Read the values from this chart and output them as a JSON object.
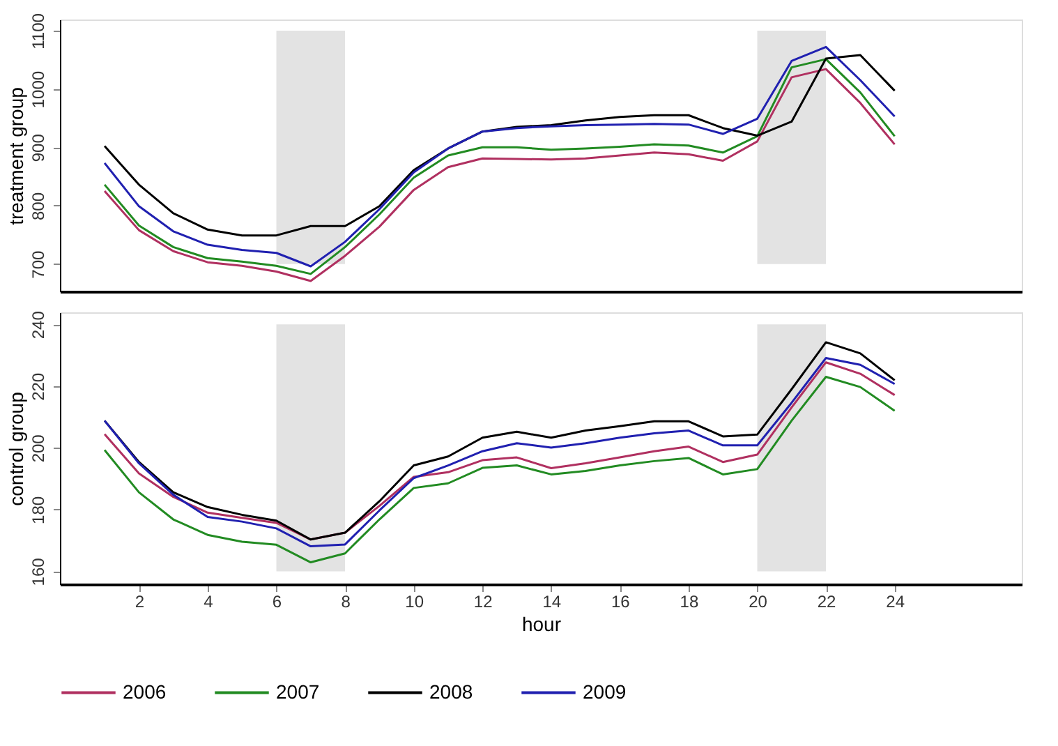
{
  "chart_data": [
    {
      "type": "line",
      "ylabel": "treatment group",
      "x": [
        1,
        2,
        3,
        4,
        5,
        6,
        7,
        8,
        9,
        10,
        11,
        12,
        13,
        14,
        15,
        16,
        17,
        18,
        19,
        20,
        21,
        22,
        23,
        24
      ],
      "xlim": [
        -0.3,
        27.7
      ],
      "ylim": [
        653,
        1119
      ],
      "yticks": [
        700,
        800,
        900,
        1000,
        1100
      ],
      "tick_labels": "y",
      "grid": false,
      "legend": "bottom",
      "bands": [
        {
          "axis": "x",
          "from": 6,
          "to": 8,
          "color": "#e3e3e3"
        },
        {
          "axis": "x",
          "from": 20,
          "to": 22,
          "color": "#e3e3e3"
        }
      ],
      "series": [
        {
          "name": "2006",
          "color": "#b03060",
          "values": [
            825,
            758,
            722,
            703,
            697,
            687,
            671,
            714,
            764,
            827,
            866,
            881,
            880,
            879,
            881,
            886,
            891,
            888,
            877,
            910,
            1020,
            1034,
            976,
            905
          ]
        },
        {
          "name": "2007",
          "color": "#228b22",
          "values": [
            836,
            766,
            729,
            710,
            704,
            697,
            683,
            729,
            785,
            848,
            886,
            900,
            900,
            896,
            898,
            901,
            905,
            903,
            891,
            919,
            1037,
            1051,
            994,
            919
          ]
        },
        {
          "name": "2008",
          "color": "#000000",
          "values": [
            902,
            836,
            787,
            759,
            749,
            749,
            765,
            765,
            799,
            861,
            898,
            927,
            935,
            938,
            946,
            952,
            955,
            955,
            933,
            920,
            944,
            1052,
            1058,
            997
          ]
        },
        {
          "name": "2009",
          "color": "#2020b0",
          "values": [
            873,
            799,
            756,
            733,
            724,
            719,
            696,
            738,
            794,
            857,
            898,
            927,
            933,
            936,
            938,
            939,
            940,
            939,
            923,
            949,
            1048,
            1072,
            1015,
            953
          ]
        }
      ]
    },
    {
      "type": "line",
      "ylabel": "control group",
      "xlabel": "hour",
      "x": [
        1,
        2,
        3,
        4,
        5,
        6,
        7,
        8,
        9,
        10,
        11,
        12,
        13,
        14,
        15,
        16,
        17,
        18,
        19,
        20,
        21,
        22,
        23,
        24
      ],
      "xlim": [
        -0.3,
        27.7
      ],
      "xticks": [
        2,
        4,
        6,
        8,
        10,
        12,
        14,
        16,
        18,
        20,
        22,
        24
      ],
      "ylim": [
        155.8,
        243.9
      ],
      "yticks": [
        160,
        180,
        200,
        220,
        240
      ],
      "grid": false,
      "legend": "bottom",
      "bands": [
        {
          "axis": "x",
          "from": 6,
          "to": 8,
          "color": "#e3e3e3"
        },
        {
          "axis": "x",
          "from": 20,
          "to": 22,
          "color": "#e3e3e3"
        }
      ],
      "series": [
        {
          "name": "2006",
          "color": "#b03060",
          "values": [
            204.4,
            191.7,
            184.1,
            179.0,
            177.3,
            175.7,
            170.3,
            172.5,
            181.2,
            190.6,
            192.1,
            196.0,
            196.9,
            193.4,
            195.0,
            196.9,
            198.9,
            200.4,
            195.4,
            197.8,
            213.1,
            227.7,
            224.0,
            217.1
          ]
        },
        {
          "name": "2007",
          "color": "#228b22",
          "values": [
            199.3,
            185.6,
            176.8,
            171.8,
            169.6,
            168.6,
            162.9,
            165.8,
            176.8,
            187.0,
            188.5,
            193.5,
            194.3,
            191.4,
            192.5,
            194.3,
            195.7,
            196.7,
            191.4,
            193.1,
            208.8,
            223.0,
            219.7,
            212.0
          ]
        },
        {
          "name": "2008",
          "color": "#000000",
          "values": [
            208.8,
            195.4,
            185.6,
            180.8,
            178.3,
            176.4,
            170.3,
            172.5,
            182.7,
            194.3,
            197.2,
            203.3,
            205.2,
            203.3,
            205.6,
            207.0,
            208.6,
            208.6,
            203.7,
            204.3,
            219.0,
            234.2,
            230.6,
            221.9
          ]
        },
        {
          "name": "2009",
          "color": "#2020b0",
          "values": [
            208.8,
            195.0,
            184.8,
            177.6,
            176.1,
            173.9,
            168.1,
            168.7,
            179.7,
            190.2,
            194.3,
            198.9,
            201.5,
            200.1,
            201.5,
            203.3,
            204.7,
            205.6,
            200.8,
            200.8,
            214.6,
            229.1,
            226.9,
            220.7
          ]
        }
      ]
    }
  ]
}
